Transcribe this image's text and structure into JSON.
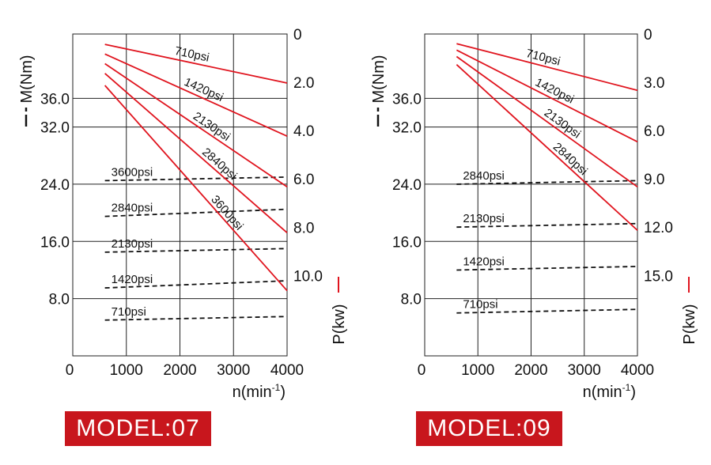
{
  "chart_data": [
    {
      "type": "line",
      "model_label": "MODEL:07",
      "xlabel": "n(min",
      "xlabel_sup": "-1",
      "xlabel_close": ")",
      "ylabel_left": "M(Nm)",
      "ylabel_right": "P(kw)",
      "xlim": [
        0,
        4000
      ],
      "ylim_left": [
        0,
        45
      ],
      "ylim_right": [
        0,
        13.33
      ],
      "x_ticks": [
        "0",
        "1000",
        "2000",
        "3000",
        "4000"
      ],
      "y_ticks_left": [
        {
          "value": 8,
          "label": "8.0"
        },
        {
          "value": 16,
          "label": "16.0"
        },
        {
          "value": 24,
          "label": "24.0"
        },
        {
          "value": 32,
          "label": "32.0"
        },
        {
          "value": 36,
          "label": "36.0"
        }
      ],
      "y_ticks_right": [
        {
          "value": 13.33,
          "label": "0"
        },
        {
          "value": 11.33,
          "label": "2.0"
        },
        {
          "value": 9.33,
          "label": "4.0"
        },
        {
          "value": 7.33,
          "label": "6.0"
        },
        {
          "value": 5.33,
          "label": "8.0"
        },
        {
          "value": 3.33,
          "label": "10.0"
        }
      ],
      "grid": true,
      "power_series": [
        {
          "name": "710psi",
          "x": [
            600,
            4000
          ],
          "y": [
            12.9,
            11.3
          ]
        },
        {
          "name": "1420psi",
          "x": [
            600,
            4000
          ],
          "y": [
            12.5,
            9.1
          ]
        },
        {
          "name": "2130psi",
          "x": [
            600,
            4000
          ],
          "y": [
            12.1,
            7.0
          ]
        },
        {
          "name": "2840psi",
          "x": [
            600,
            4000
          ],
          "y": [
            11.7,
            5.1
          ]
        },
        {
          "name": "3600psi",
          "x": [
            600,
            4000
          ],
          "y": [
            11.2,
            2.7
          ]
        }
      ],
      "torque_series": [
        {
          "name": "3600psi",
          "x": [
            600,
            4000
          ],
          "y": [
            24.5,
            25.0
          ]
        },
        {
          "name": "2840psi",
          "x": [
            600,
            4000
          ],
          "y": [
            19.5,
            20.5
          ]
        },
        {
          "name": "2130psi",
          "x": [
            600,
            4000
          ],
          "y": [
            14.5,
            15.0
          ]
        },
        {
          "name": "1420psi",
          "x": [
            600,
            4000
          ],
          "y": [
            9.5,
            10.5
          ]
        },
        {
          "name": "710psi",
          "x": [
            600,
            4000
          ],
          "y": [
            5.0,
            5.5
          ]
        }
      ]
    },
    {
      "type": "line",
      "model_label": "MODEL:09",
      "xlabel": "n(min",
      "xlabel_sup": "-1",
      "xlabel_close": ")",
      "ylabel_left": "M(Nm)",
      "ylabel_right": "P(kw)",
      "xlim": [
        0,
        4000
      ],
      "ylim_left": [
        0,
        45
      ],
      "ylim_right": [
        0,
        20
      ],
      "x_ticks": [
        "0",
        "1000",
        "2000",
        "3000",
        "4000"
      ],
      "y_ticks_left": [
        {
          "value": 8,
          "label": "8.0"
        },
        {
          "value": 16,
          "label": "16.0"
        },
        {
          "value": 24,
          "label": "24.0"
        },
        {
          "value": 32,
          "label": "32.0"
        },
        {
          "value": 36,
          "label": "36.0"
        }
      ],
      "y_ticks_right": [
        {
          "value": 20,
          "label": "0"
        },
        {
          "value": 17,
          "label": "3.0"
        },
        {
          "value": 14,
          "label": "6.0"
        },
        {
          "value": 11,
          "label": "9.0"
        },
        {
          "value": 8,
          "label": "12.0"
        },
        {
          "value": 5,
          "label": "15.0"
        }
      ],
      "grid": true,
      "power_series": [
        {
          "name": "710psi",
          "x": [
            600,
            4000
          ],
          "y": [
            19.4,
            16.5
          ]
        },
        {
          "name": "1420psi",
          "x": [
            600,
            4000
          ],
          "y": [
            19.0,
            13.3
          ]
        },
        {
          "name": "2130psi",
          "x": [
            600,
            4000
          ],
          "y": [
            18.6,
            10.5
          ]
        },
        {
          "name": "2840psi",
          "x": [
            600,
            4000
          ],
          "y": [
            18.1,
            7.8
          ]
        }
      ],
      "torque_series": [
        {
          "name": "2840psi",
          "x": [
            600,
            4000
          ],
          "y": [
            24.0,
            24.5
          ]
        },
        {
          "name": "2130psi",
          "x": [
            600,
            4000
          ],
          "y": [
            18.0,
            18.5
          ]
        },
        {
          "name": "1420psi",
          "x": [
            600,
            4000
          ],
          "y": [
            12.0,
            12.5
          ]
        },
        {
          "name": "710psi",
          "x": [
            600,
            4000
          ],
          "y": [
            6.0,
            6.5
          ]
        }
      ]
    }
  ]
}
